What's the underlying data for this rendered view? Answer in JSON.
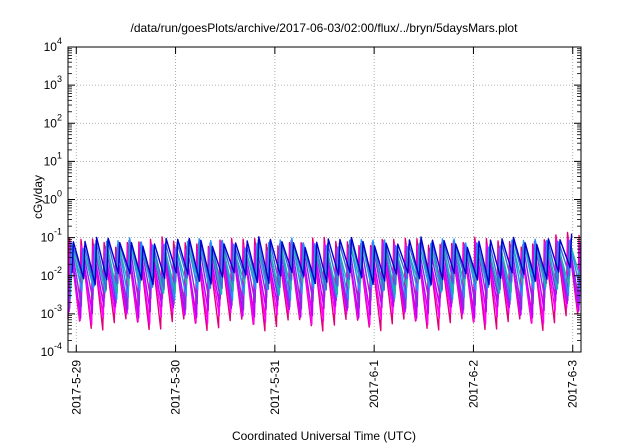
{
  "chart_data": {
    "type": "line",
    "title": "/data/run/goesPlots/archive/2017-06-03/02:00/flux/../bryn/5daysMars.plot",
    "xlabel": "Coordinated Universal Time (UTC)",
    "ylabel": "cGy/day",
    "yscale": "log",
    "ylim": [
      0.0001,
      10000
    ],
    "xlim": [
      "2017-05-28T22:00",
      "2017-06-03T02:00"
    ],
    "grid": true,
    "legend": "none",
    "x_ticks": [
      {
        "label": "2017-5-29",
        "x": "2017-05-29T00:00"
      },
      {
        "label": "2017-5-30",
        "x": "2017-05-30T00:00"
      },
      {
        "label": "2017-5-31",
        "x": "2017-05-31T00:00"
      },
      {
        "label": "2017-6-1",
        "x": "2017-06-01T00:00"
      },
      {
        "label": "2017-6-2",
        "x": "2017-06-02T00:00"
      },
      {
        "label": "2017-6-3",
        "x": "2017-06-03T00:00"
      }
    ],
    "y_ticks": [
      {
        "base": "10",
        "exp": "-4",
        "value": 0.0001
      },
      {
        "base": "10",
        "exp": "-3",
        "value": 0.001
      },
      {
        "base": "10",
        "exp": "-2",
        "value": 0.01
      },
      {
        "base": "10",
        "exp": "-1",
        "value": 0.1
      },
      {
        "base": "10",
        "exp": "0",
        "value": 1
      },
      {
        "base": "10",
        "exp": "1",
        "value": 10
      },
      {
        "base": "10",
        "exp": "2",
        "value": 100
      },
      {
        "base": "10",
        "exp": "3",
        "value": 1000
      },
      {
        "base": "10",
        "exp": "4",
        "value": 10000
      }
    ],
    "cycle_hours": 2.8,
    "series": [
      {
        "color": "#e0007a",
        "peak": 0.08,
        "trough": 0.00055
      },
      {
        "color": "#ff00ff",
        "peak": 0.06,
        "trough": 0.0008
      },
      {
        "color": "#c000ff",
        "peak": 0.05,
        "trough": 0.0012
      },
      {
        "color": "#8a2be2",
        "peak": 0.065,
        "trough": 0.002
      },
      {
        "color": "#1e90ff",
        "peak": 0.075,
        "trough": 0.0035
      },
      {
        "color": "#20b2aa",
        "peak": 0.055,
        "trough": 0.005
      },
      {
        "color": "#4169e1",
        "peak": 0.07,
        "trough": 0.0065
      },
      {
        "color": "#0000cd",
        "peak": 0.08,
        "trough": 0.009
      }
    ],
    "late_boost": {
      "from": "2017-06-02T19:00",
      "factor": 1.35
    }
  }
}
